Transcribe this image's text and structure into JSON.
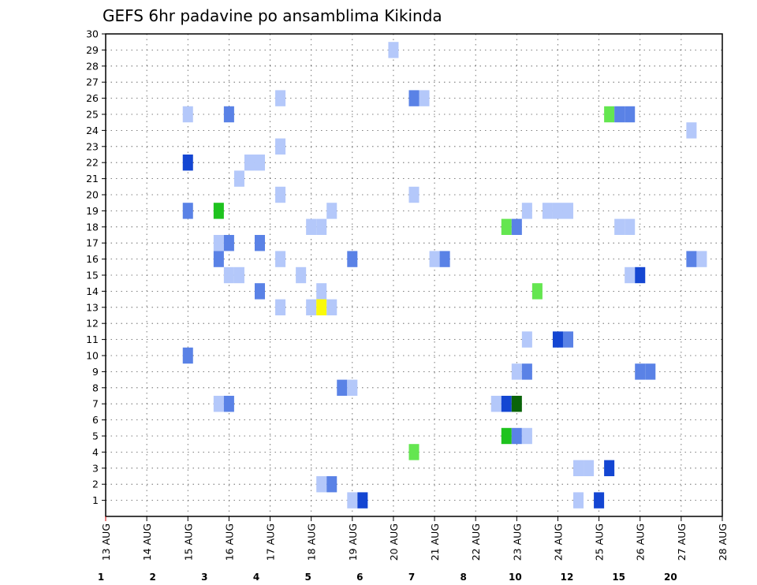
{
  "chart_data": {
    "type": "heatmap",
    "title": "GEFS 6hr padavine po ansamblima Kikinda",
    "xlabel": "",
    "ylabel": "",
    "x_ticks": [
      "13 AUG",
      "14 AUG",
      "15 AUG",
      "16 AUG",
      "17 AUG",
      "18 AUG",
      "19 AUG",
      "20 AUG",
      "21 AUG",
      "22 AUG",
      "23 AUG",
      "24 AUG",
      "25 AUG",
      "26 AUG",
      "27 AUG",
      "28 AUG"
    ],
    "x_range_days": [
      0,
      15
    ],
    "y_ticks": [
      1,
      2,
      3,
      4,
      5,
      6,
      7,
      8,
      9,
      10,
      11,
      12,
      13,
      14,
      15,
      16,
      17,
      18,
      19,
      20,
      21,
      22,
      23,
      24,
      25,
      26,
      27,
      28,
      29,
      30
    ],
    "y_range": [
      0,
      30
    ],
    "grid": true,
    "colorbar": {
      "labels": [
        "1",
        "2",
        "3",
        "4",
        "5",
        "6",
        "7",
        "8",
        "10",
        "12",
        "15",
        "20"
      ],
      "colors": [
        "#b4c8fa",
        "#5a82e6",
        "#1446d2",
        "#64e650",
        "#1ec31e",
        "#0a640a",
        "#fafa0a",
        "#fab432",
        "#fa7d0a",
        "#e63c0a",
        "#a50a0a",
        "#640000"
      ]
    },
    "cells": [
      {
        "x": 7.0,
        "y": 29,
        "c": 0
      },
      {
        "x": 2.0,
        "y": 25,
        "c": 0
      },
      {
        "x": 3.0,
        "y": 25,
        "c": 1
      },
      {
        "x": 12.25,
        "y": 25,
        "c": 3
      },
      {
        "x": 12.5,
        "y": 25,
        "c": 1
      },
      {
        "x": 12.75,
        "y": 25,
        "c": 1
      },
      {
        "x": 4.25,
        "y": 26,
        "c": 0
      },
      {
        "x": 7.5,
        "y": 26,
        "c": 1
      },
      {
        "x": 7.75,
        "y": 26,
        "c": 0
      },
      {
        "x": 14.25,
        "y": 24,
        "c": 0
      },
      {
        "x": 4.25,
        "y": 23,
        "c": 0
      },
      {
        "x": 2.0,
        "y": 22,
        "c": 2
      },
      {
        "x": 3.5,
        "y": 22,
        "c": 0
      },
      {
        "x": 3.75,
        "y": 22,
        "c": 0
      },
      {
        "x": 3.25,
        "y": 21,
        "c": 0
      },
      {
        "x": 4.25,
        "y": 20,
        "c": 0
      },
      {
        "x": 7.5,
        "y": 20,
        "c": 0
      },
      {
        "x": 2.0,
        "y": 19,
        "c": 1
      },
      {
        "x": 2.75,
        "y": 19,
        "c": 4
      },
      {
        "x": 5.5,
        "y": 19,
        "c": 0
      },
      {
        "x": 10.25,
        "y": 19,
        "c": 0
      },
      {
        "x": 10.75,
        "y": 19,
        "c": 0
      },
      {
        "x": 11.0,
        "y": 19,
        "c": 0
      },
      {
        "x": 11.25,
        "y": 19,
        "c": 0
      },
      {
        "x": 5.0,
        "y": 18,
        "c": 0
      },
      {
        "x": 5.25,
        "y": 18,
        "c": 0
      },
      {
        "x": 9.75,
        "y": 18,
        "c": 3
      },
      {
        "x": 10.0,
        "y": 18,
        "c": 1
      },
      {
        "x": 12.5,
        "y": 18,
        "c": 0
      },
      {
        "x": 12.75,
        "y": 18,
        "c": 0
      },
      {
        "x": 2.75,
        "y": 17,
        "c": 0
      },
      {
        "x": 3.0,
        "y": 17,
        "c": 1
      },
      {
        "x": 3.75,
        "y": 17,
        "c": 1
      },
      {
        "x": 2.75,
        "y": 16,
        "c": 1
      },
      {
        "x": 4.25,
        "y": 16,
        "c": 0
      },
      {
        "x": 6.0,
        "y": 16,
        "c": 1
      },
      {
        "x": 8.0,
        "y": 16,
        "c": 0
      },
      {
        "x": 8.25,
        "y": 16,
        "c": 1
      },
      {
        "x": 14.25,
        "y": 16,
        "c": 1
      },
      {
        "x": 14.5,
        "y": 16,
        "c": 0
      },
      {
        "x": 3.0,
        "y": 15,
        "c": 0
      },
      {
        "x": 3.25,
        "y": 15,
        "c": 0
      },
      {
        "x": 4.75,
        "y": 15,
        "c": 0
      },
      {
        "x": 12.75,
        "y": 15,
        "c": 0
      },
      {
        "x": 13.0,
        "y": 15,
        "c": 2
      },
      {
        "x": 3.75,
        "y": 14,
        "c": 1
      },
      {
        "x": 5.25,
        "y": 14,
        "c": 0
      },
      {
        "x": 10.5,
        "y": 14,
        "c": 3
      },
      {
        "x": 4.25,
        "y": 13,
        "c": 0
      },
      {
        "x": 5.0,
        "y": 13,
        "c": 0
      },
      {
        "x": 5.25,
        "y": 13,
        "c": 6
      },
      {
        "x": 5.5,
        "y": 13,
        "c": 0
      },
      {
        "x": 10.25,
        "y": 11,
        "c": 0
      },
      {
        "x": 11.0,
        "y": 11,
        "c": 2
      },
      {
        "x": 11.25,
        "y": 11,
        "c": 1
      },
      {
        "x": 2.0,
        "y": 10,
        "c": 1
      },
      {
        "x": 10.0,
        "y": 9,
        "c": 0
      },
      {
        "x": 10.25,
        "y": 9,
        "c": 1
      },
      {
        "x": 13.0,
        "y": 9,
        "c": 1
      },
      {
        "x": 13.25,
        "y": 9,
        "c": 1
      },
      {
        "x": 5.75,
        "y": 8,
        "c": 1
      },
      {
        "x": 6.0,
        "y": 8,
        "c": 0
      },
      {
        "x": 2.75,
        "y": 7,
        "c": 0
      },
      {
        "x": 3.0,
        "y": 7,
        "c": 1
      },
      {
        "x": 9.5,
        "y": 7,
        "c": 0
      },
      {
        "x": 9.75,
        "y": 7,
        "c": 2
      },
      {
        "x": 10.0,
        "y": 7,
        "c": 5
      },
      {
        "x": 9.75,
        "y": 5,
        "c": 4
      },
      {
        "x": 10.0,
        "y": 5,
        "c": 1
      },
      {
        "x": 10.25,
        "y": 5,
        "c": 0
      },
      {
        "x": 7.5,
        "y": 4,
        "c": 3
      },
      {
        "x": 11.5,
        "y": 3,
        "c": 0
      },
      {
        "x": 11.75,
        "y": 3,
        "c": 0
      },
      {
        "x": 12.25,
        "y": 3,
        "c": 2
      },
      {
        "x": 5.25,
        "y": 2,
        "c": 0
      },
      {
        "x": 5.5,
        "y": 2,
        "c": 1
      },
      {
        "x": 6.0,
        "y": 1,
        "c": 0
      },
      {
        "x": 6.25,
        "y": 1,
        "c": 2
      },
      {
        "x": 11.5,
        "y": 1,
        "c": 0
      },
      {
        "x": 12.0,
        "y": 1,
        "c": 2
      }
    ]
  }
}
